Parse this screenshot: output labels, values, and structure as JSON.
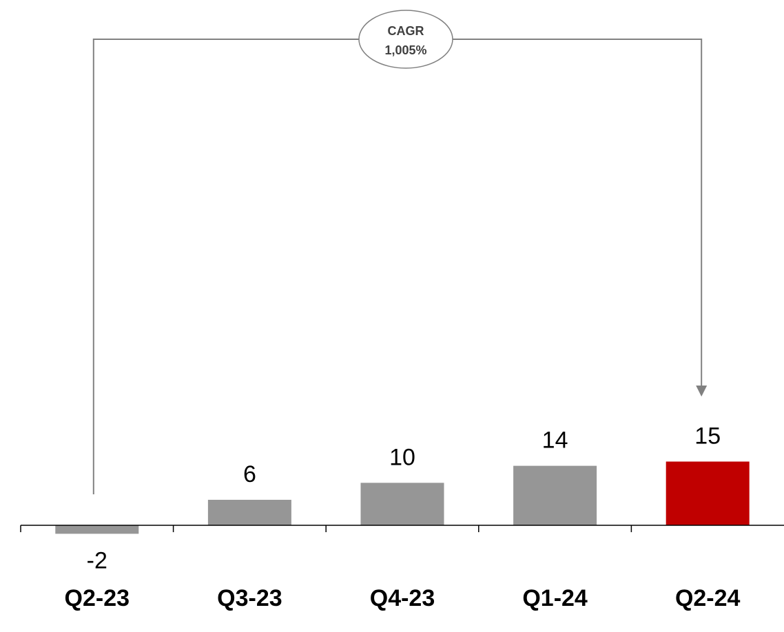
{
  "chart_data": {
    "type": "bar",
    "categories": [
      "Q2-23",
      "Q3-23",
      "Q4-23",
      "Q1-24",
      "Q2-24"
    ],
    "values": [
      -2,
      6,
      10,
      14,
      15
    ],
    "value_labels": [
      "-2",
      "6",
      "10",
      "14",
      "15"
    ],
    "title": "",
    "xlabel": "",
    "ylabel": "",
    "ylim": [
      -5,
      110
    ],
    "grid": false,
    "legend": "none",
    "colors": {
      "default_bar": "#969696",
      "highlight_bar": "#c00000",
      "axis": "#000000",
      "annotation_line": "#808080"
    },
    "highlight_index": 4,
    "annotation": {
      "type": "growth-arrow",
      "from_category": "Q2-23",
      "to_category": "Q2-24",
      "label_line1": "CAGR",
      "label_line2": "1,005%"
    }
  }
}
